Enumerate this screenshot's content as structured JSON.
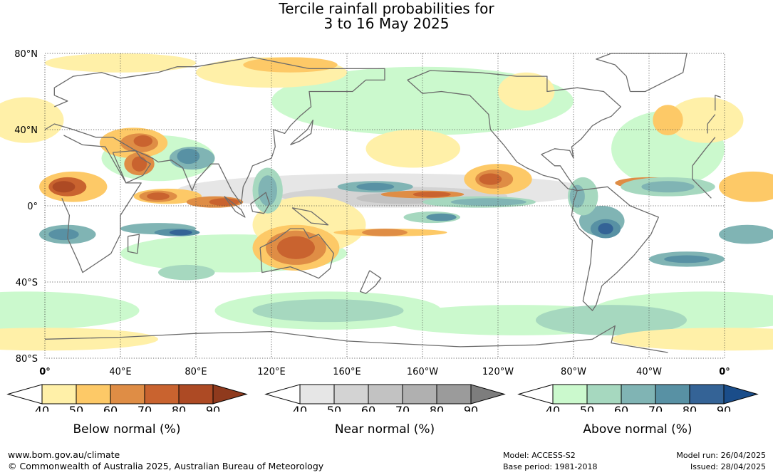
{
  "title": {
    "line1": "Tercile rainfall probabilities for",
    "line2": "3 to 16 May 2025"
  },
  "map": {
    "lat_labels": [
      "80°N",
      "40°N",
      "0°",
      "40°S",
      "80°S"
    ],
    "lon_labels": [
      "0°",
      "40°E",
      "80°E",
      "120°E",
      "160°E",
      "160°W",
      "120°W",
      "80°W",
      "40°W",
      "0°"
    ],
    "colors": {
      "below": [
        "#fff0a8",
        "#fdc967",
        "#df8d45",
        "#c9632f",
        "#ad4a24",
        "#8f3a1d"
      ],
      "near": [
        "#e6e6e6",
        "#d3d3d3",
        "#c2c2c2",
        "#b0b0b0",
        "#9b9b9b",
        "#7d7d7d"
      ],
      "above": [
        "#cbf9cd",
        "#a6d8bf",
        "#80b4b4",
        "#5891a4",
        "#346396",
        "#1a4d8a"
      ],
      "coast": "#6b6b6b",
      "ocean": "#ffffff"
    }
  },
  "legends": [
    {
      "name": "below",
      "ticks": [
        "40",
        "50",
        "60",
        "70",
        "80",
        "90"
      ],
      "label": "Below normal (%)"
    },
    {
      "name": "near",
      "ticks": [
        "40",
        "50",
        "60",
        "70",
        "80",
        "90"
      ],
      "label": "Near normal (%)"
    },
    {
      "name": "above",
      "ticks": [
        "40",
        "50",
        "60",
        "70",
        "80",
        "90"
      ],
      "label": "Above normal (%)"
    }
  ],
  "footer": {
    "website": "www.bom.gov.au/climate",
    "copyright": "© Commonwealth of Australia 2025, Australian Bureau of Meteorology",
    "model": "Model: ACCESS-S2",
    "base_period": "Base period: 1981-2018",
    "model_run": "Model run: 26/04/2025",
    "issued": "Issued: 28/04/2025"
  }
}
